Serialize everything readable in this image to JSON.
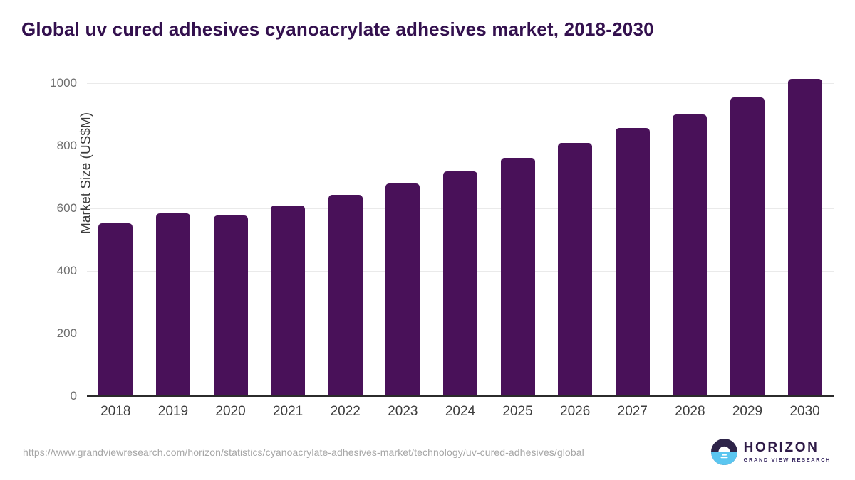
{
  "title": "Global uv cured adhesives cyanoacrylate adhesives market, 2018-2030",
  "footer": {
    "source_url": "https://www.grandviewresearch.com/horizon/statistics/cyanoacrylate-adhesives-market/technology/uv-cured-adhesives/global",
    "logo": {
      "name": "HORIZON",
      "subtitle": "GRAND VIEW RESEARCH"
    }
  },
  "colors": {
    "bar": "#491159",
    "title": "#33104e",
    "axis_line": "#2b2b2b",
    "gridline": "#eaeaea",
    "logo_dark_purple": "#2e2449",
    "logo_light_blue": "#5bc6f0"
  },
  "chart_data": {
    "type": "bar",
    "title": "Global uv cured adhesives cyanoacrylate adhesives market, 2018-2030",
    "categories": [
      "2018",
      "2019",
      "2020",
      "2021",
      "2022",
      "2023",
      "2024",
      "2025",
      "2026",
      "2027",
      "2028",
      "2029",
      "2030"
    ],
    "values": [
      553,
      586,
      580,
      611,
      645,
      682,
      719,
      764,
      810,
      858,
      901,
      956,
      1015
    ],
    "xlabel": "",
    "ylabel": "Market Size (US$M)",
    "ylim": [
      0,
      1040
    ],
    "yticks": [
      0,
      200,
      400,
      600,
      800,
      1000
    ],
    "grid": true,
    "legend": false,
    "bar_color": "#491159"
  }
}
